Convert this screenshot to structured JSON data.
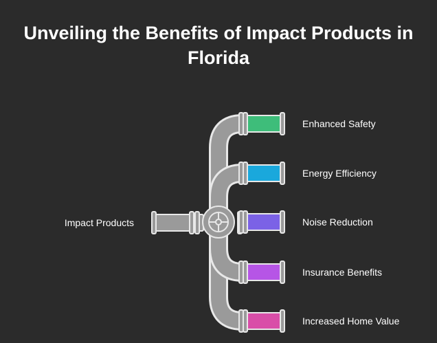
{
  "title": {
    "line1": "Unveiling the Benefits of Impact Products in",
    "line2": "Florida"
  },
  "source": {
    "label": "Impact Products"
  },
  "benefits": [
    {
      "label": "Enhanced Safety",
      "color": "#3ebd7a"
    },
    {
      "label": "Energy Efficiency",
      "color": "#1aa8dc"
    },
    {
      "label": "Noise Reduction",
      "color": "#7b62e6"
    },
    {
      "label": "Insurance Benefits",
      "color": "#b655e6"
    },
    {
      "label": "Increased Home Value",
      "color": "#d94ea8"
    }
  ],
  "colors": {
    "background": "#2b2b2b",
    "pipe": "#9a9a9a",
    "pipe_outline": "#e8e8e8",
    "text": "#ffffff"
  }
}
